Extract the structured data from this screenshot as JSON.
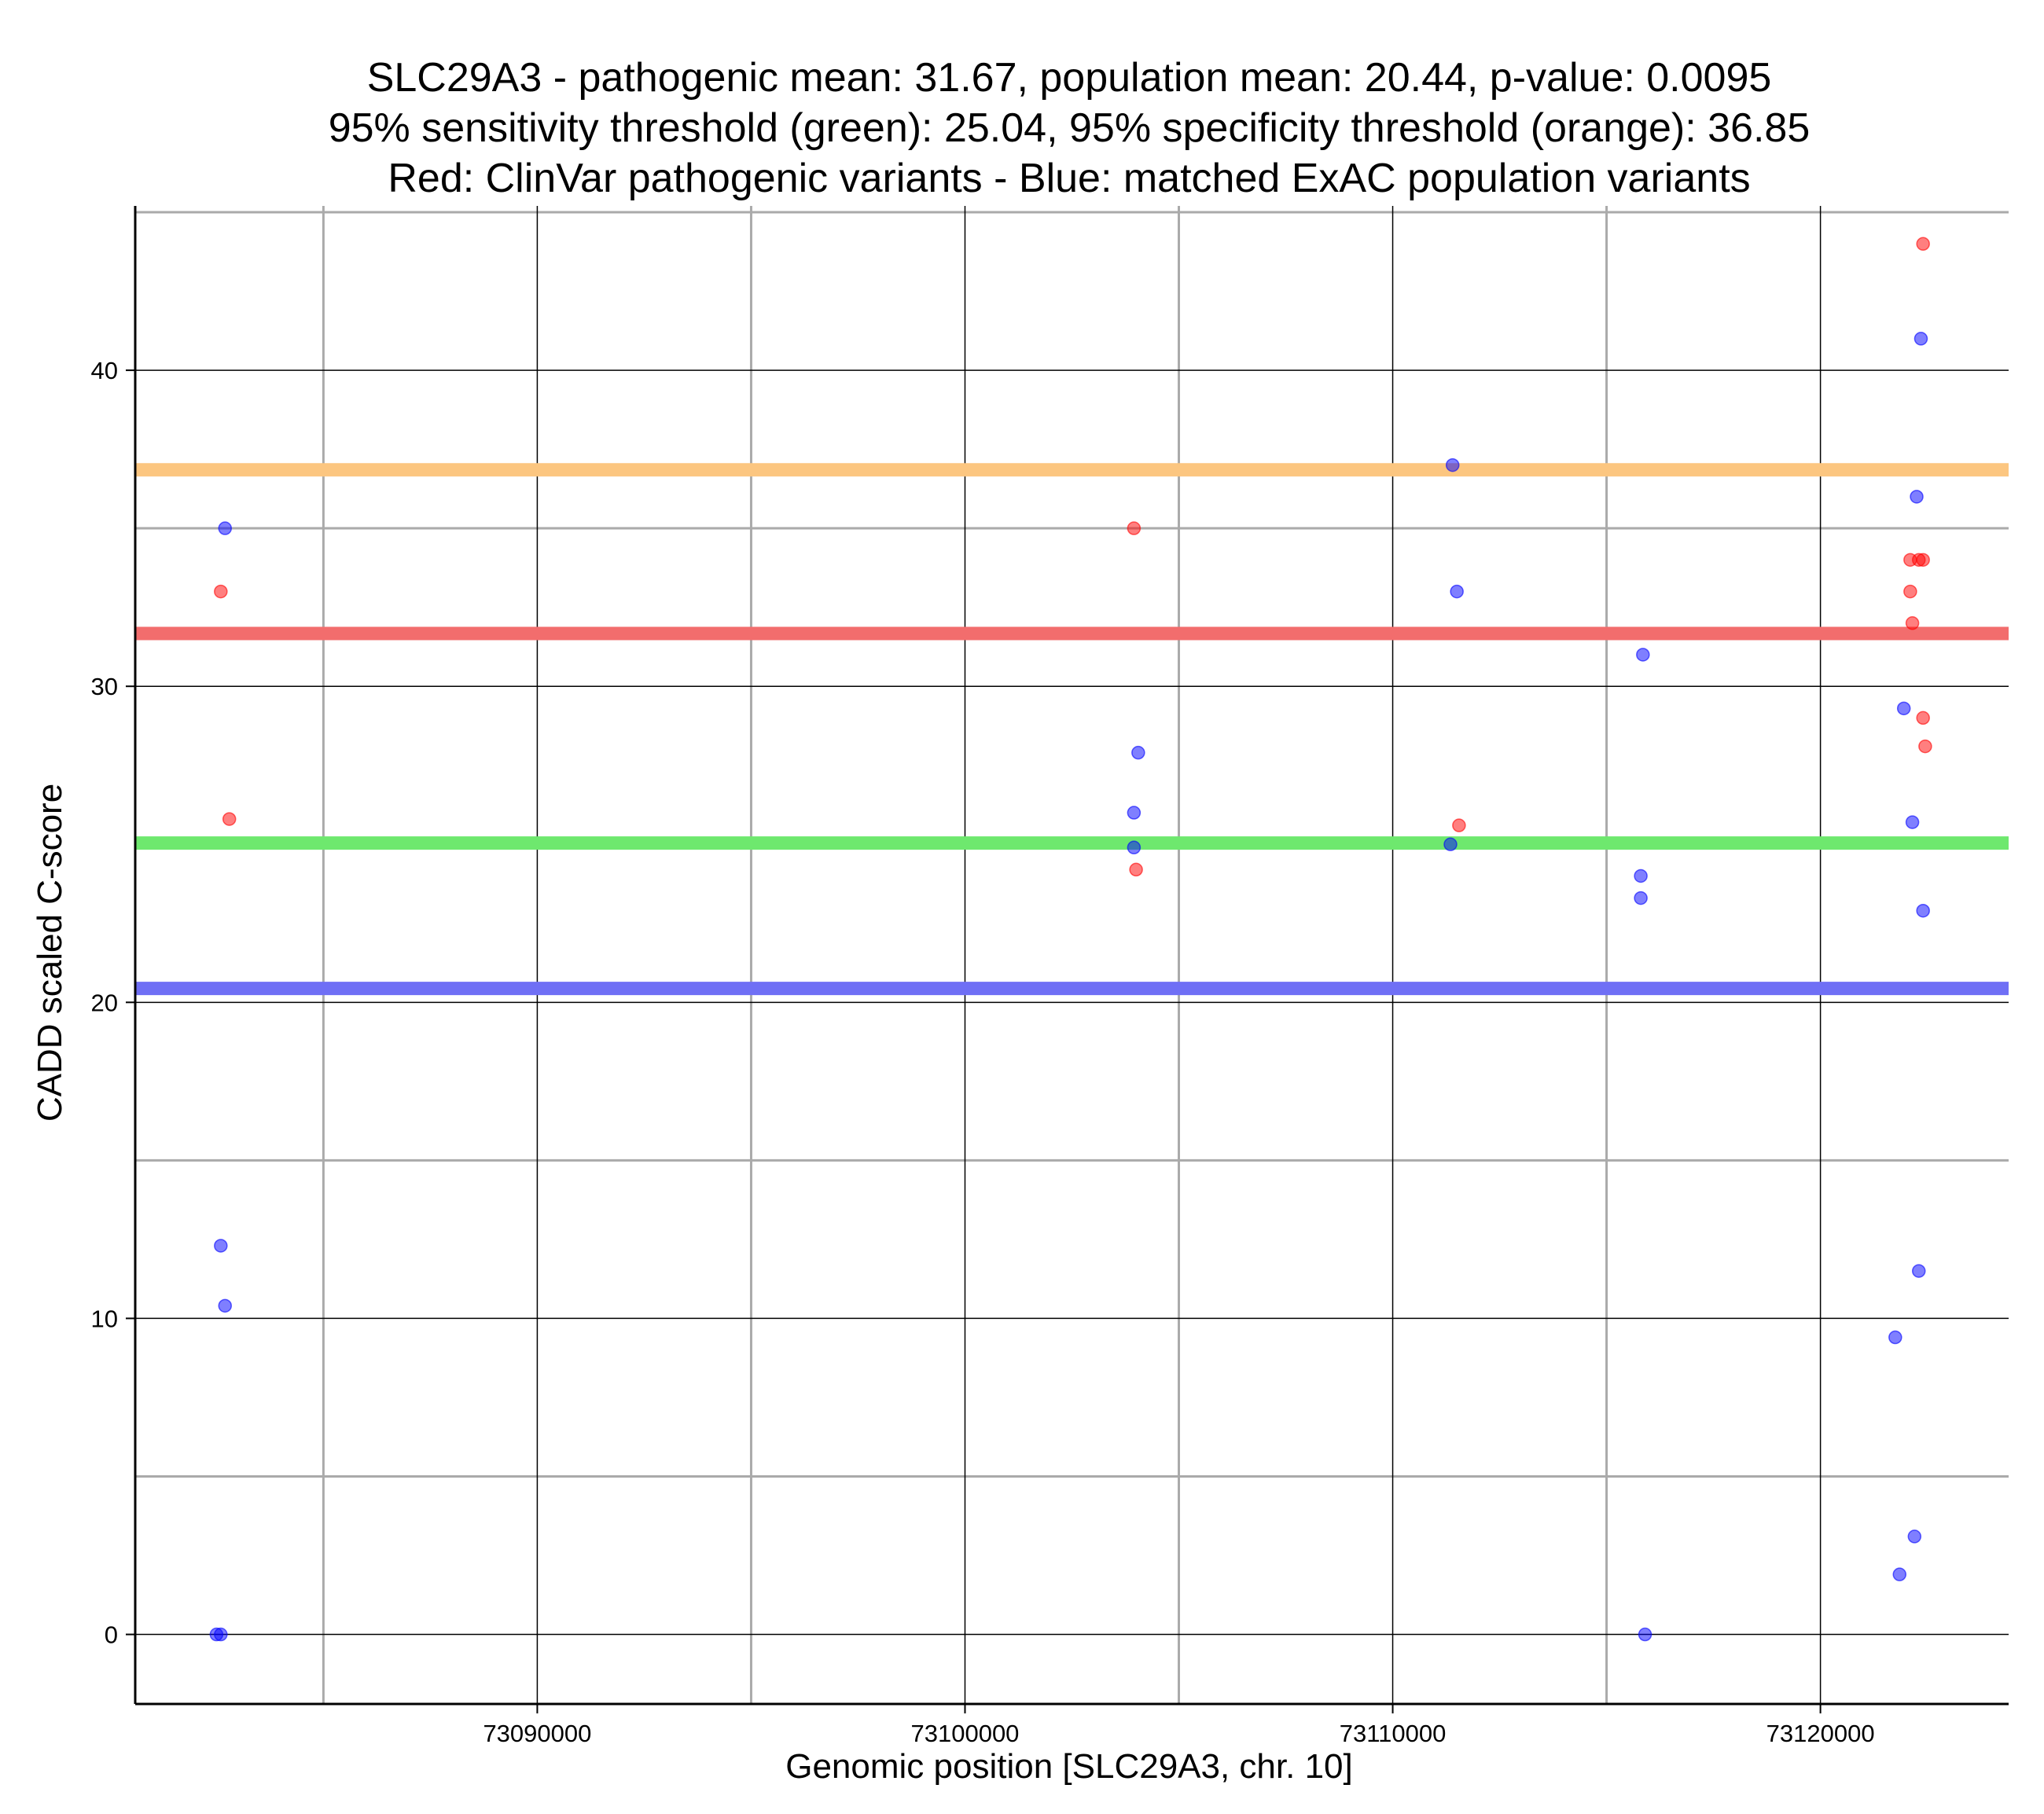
{
  "chart_data": {
    "type": "scatter",
    "title": [
      "SLC29A3 - pathogenic mean: 31.67, population mean: 20.44, p-value: 0.0095",
      "95% sensitivity threshold (green): 25.04, 95% specificity threshold (orange): 36.85",
      "Red: ClinVar pathogenic variants - Blue: matched ExAC population variants"
    ],
    "xlabel": "Genomic position [SLC29A3, chr. 10]",
    "ylabel": "CADD scaled C-score",
    "xlim": [
      73080600,
      73124400
    ],
    "ylim": [
      -2.2,
      45.2
    ],
    "x_ticks": [
      73090000,
      73100000,
      73110000,
      73120000
    ],
    "x_tick_labels": [
      "73090000",
      "73100000",
      "73110000",
      "73120000"
    ],
    "y_ticks": [
      0,
      10,
      20,
      30,
      40
    ],
    "y_tick_labels": [
      "0",
      "10",
      "20",
      "30",
      "40"
    ],
    "x_minor_gridlines": [
      73085000,
      73095000,
      73105000,
      73115000
    ],
    "y_minor_gridlines": [
      5,
      15,
      25,
      35,
      45
    ],
    "grid": true,
    "reference_lines": [
      {
        "name": "pathogenic mean",
        "y": 31.67,
        "color": "#f26d6d"
      },
      {
        "name": "population mean",
        "y": 20.44,
        "color": "#6f6ff5"
      },
      {
        "name": "95% sensitivity threshold",
        "y": 25.04,
        "color": "#6ee86e"
      },
      {
        "name": "95% specificity threshold",
        "y": 36.85,
        "color": "#fcc680"
      }
    ],
    "series": [
      {
        "name": "ClinVar pathogenic variants",
        "color": "#ff0000",
        "points": [
          {
            "x": 73082600,
            "y": 33.0
          },
          {
            "x": 73082800,
            "y": 25.8
          },
          {
            "x": 73103950,
            "y": 35.0
          },
          {
            "x": 73104000,
            "y": 24.2
          },
          {
            "x": 73111550,
            "y": 25.6
          },
          {
            "x": 73122100,
            "y": 34.0
          },
          {
            "x": 73122100,
            "y": 33.0
          },
          {
            "x": 73122150,
            "y": 32.0
          },
          {
            "x": 73122300,
            "y": 34.0
          },
          {
            "x": 73122400,
            "y": 34.0
          },
          {
            "x": 73122400,
            "y": 29.0
          },
          {
            "x": 73122450,
            "y": 28.1
          },
          {
            "x": 73122400,
            "y": 44.0
          }
        ]
      },
      {
        "name": "matched ExAC population variants",
        "color": "#0000ff",
        "points": [
          {
            "x": 73082700,
            "y": 35.0
          },
          {
            "x": 73082600,
            "y": 12.3
          },
          {
            "x": 73082700,
            "y": 10.4
          },
          {
            "x": 73082500,
            "y": 0.0
          },
          {
            "x": 73082600,
            "y": 0.0
          },
          {
            "x": 73104050,
            "y": 27.9
          },
          {
            "x": 73103950,
            "y": 26.0
          },
          {
            "x": 73103950,
            "y": 24.9
          },
          {
            "x": 73111400,
            "y": 37.0
          },
          {
            "x": 73111500,
            "y": 33.0
          },
          {
            "x": 73111350,
            "y": 25.0
          },
          {
            "x": 73115850,
            "y": 31.0
          },
          {
            "x": 73115800,
            "y": 24.0
          },
          {
            "x": 73115800,
            "y": 23.3
          },
          {
            "x": 73115900,
            "y": 0.0
          },
          {
            "x": 73122350,
            "y": 41.0
          },
          {
            "x": 73122250,
            "y": 36.0
          },
          {
            "x": 73121950,
            "y": 29.3
          },
          {
            "x": 73122150,
            "y": 25.7
          },
          {
            "x": 73122400,
            "y": 22.9
          },
          {
            "x": 73122300,
            "y": 11.5
          },
          {
            "x": 73121750,
            "y": 9.4
          },
          {
            "x": 73122200,
            "y": 3.1
          },
          {
            "x": 73121850,
            "y": 1.9
          }
        ]
      }
    ]
  }
}
